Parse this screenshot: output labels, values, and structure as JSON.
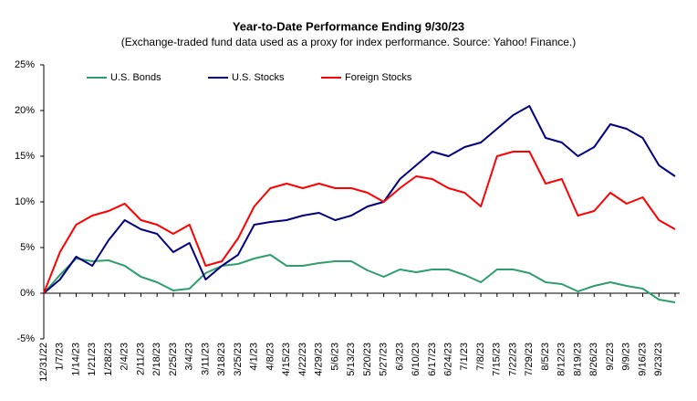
{
  "chart_data": {
    "type": "line",
    "title": "Year-to-Date Performance Ending 9/30/23",
    "subtitle": "(Exchange-traded fund data used as a proxy for index performance. Source: Yahoo! Finance.)",
    "categories": [
      "12/31/22",
      "1/7/23",
      "1/14/23",
      "1/21/23",
      "1/28/23",
      "2/4/23",
      "2/11/23",
      "2/18/23",
      "2/25/23",
      "3/4/23",
      "3/11/23",
      "3/18/23",
      "3/25/23",
      "4/1/23",
      "4/8/23",
      "4/15/23",
      "4/22/23",
      "4/29/23",
      "5/6/23",
      "5/13/23",
      "5/20/23",
      "5/27/23",
      "6/3/23",
      "6/10/23",
      "6/17/23",
      "6/24/23",
      "7/1/23",
      "7/8/23",
      "7/15/23",
      "7/22/23",
      "7/29/23",
      "8/5/23",
      "8/12/23",
      "8/19/23",
      "8/26/23",
      "9/2/23",
      "9/9/23",
      "9/16/23",
      "9/23/23",
      null
    ],
    "series": [
      {
        "name": "U.S. Bonds",
        "color": "#2e9e6a",
        "values": [
          0,
          2.0,
          3.8,
          3.5,
          3.6,
          3.0,
          1.8,
          1.2,
          0.3,
          0.5,
          2.2,
          3.0,
          3.2,
          3.8,
          4.2,
          3.0,
          3.0,
          3.3,
          3.5,
          3.5,
          2.5,
          1.8,
          2.6,
          2.3,
          2.6,
          2.6,
          2.0,
          1.2,
          2.6,
          2.6,
          2.2,
          1.2,
          1.0,
          0.2,
          0.8,
          1.2,
          0.8,
          0.5,
          -0.7,
          -1.0
        ]
      },
      {
        "name": "U.S. Stocks",
        "color": "#000080",
        "values": [
          0,
          1.5,
          4.0,
          3.0,
          5.8,
          8.0,
          7.0,
          6.5,
          4.5,
          5.5,
          1.5,
          3.0,
          4.2,
          7.5,
          7.8,
          8.0,
          8.5,
          8.8,
          8.0,
          8.5,
          9.5,
          10.0,
          12.5,
          14.0,
          15.5,
          15.0,
          16.0,
          16.5,
          18.0,
          19.5,
          20.5,
          17.0,
          16.5,
          15.0,
          16.0,
          18.5,
          18.0,
          17.0,
          14.0,
          12.8
        ]
      },
      {
        "name": "Foreign Stocks",
        "color": "#ff0000",
        "values": [
          0,
          4.5,
          7.5,
          8.5,
          9.0,
          9.8,
          8.0,
          7.5,
          6.5,
          7.5,
          3.0,
          3.5,
          6.0,
          9.5,
          11.5,
          12.0,
          11.5,
          12.0,
          11.5,
          11.5,
          11.0,
          10.0,
          11.5,
          12.8,
          12.5,
          11.5,
          11.0,
          9.5,
          15.0,
          15.5,
          15.5,
          12.0,
          12.5,
          8.5,
          9.0,
          11.0,
          9.8,
          10.5,
          8.0,
          7.0
        ]
      }
    ],
    "ylim": [
      -5,
      25
    ],
    "yticks": [
      {
        "value": -5,
        "label": "-5%"
      },
      {
        "value": 0,
        "label": "0%"
      },
      {
        "value": 5,
        "label": "5%"
      },
      {
        "value": 10,
        "label": "10%"
      },
      {
        "value": 15,
        "label": "15%"
      },
      {
        "value": 20,
        "label": "20%"
      },
      {
        "value": 25,
        "label": "25%"
      }
    ],
    "grid": false,
    "legend": "top"
  }
}
